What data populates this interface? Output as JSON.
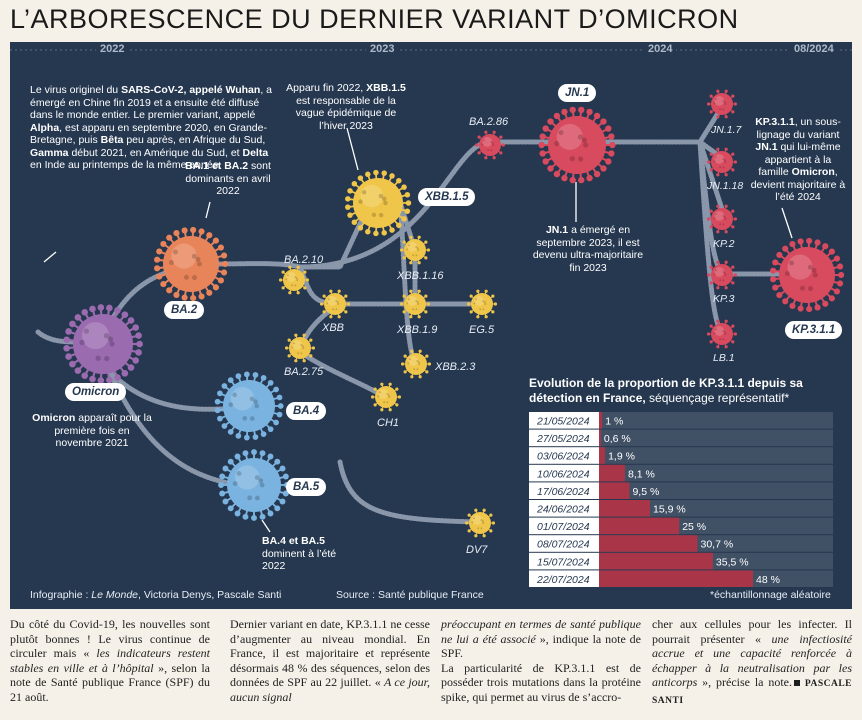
{
  "title": "L’ARBORESCENCE DU DERNIER VARIANT D’OMICRON",
  "years": [
    "2022",
    "2023",
    "2024",
    "08/2024"
  ],
  "texts": {
    "intro_1": "Le virus originel du ",
    "intro_2": "SARS-CoV-2, appelé Wuhan",
    "intro_3": ", a émergé en Chine fin 2019 et a ensuite été diffusé dans le monde entier. Le premier variant, appelé ",
    "intro_4": "Alpha",
    "intro_5": ", est apparu en septembre 2020, en Grande-Bretagne, puis ",
    "intro_6": "Bêta",
    "intro_7": " peu après, en Afrique du Sud, ",
    "intro_8": "Gamma",
    "intro_9": " début 2021, en Amérique du Sud, et ",
    "intro_10": "Delta",
    "intro_11": " en Inde au printemps de la même année.",
    "ba1_1": "BA.1 et BA.2",
    "ba1_2": " sont dominants en avril 2022",
    "xbb_1": "Apparu fin 2022, ",
    "xbb_2": "XBB.1.5",
    "xbb_3": " est responsable de la vague épidémique de l’hiver 2023",
    "jn1_1": "JN.1",
    "jn1_2": " a émergé en septembre 2023, il est devenu ultra-majoritaire fin 2023",
    "kp_1": "KP.3.1.1",
    "kp_2": ", un sous-lignage du variant ",
    "kp_3": "JN.1",
    "kp_4": " qui lui-même appartient à la famille ",
    "kp_5": "Omicron",
    "kp_6": ", devient majoritaire à l’été 2024",
    "om_1": "Omicron",
    "om_2": " apparaît pour la première fois en novembre 2021",
    "ba45_1": "BA.4 et BA.5",
    "ba45_2": " dominent à l’été 2022"
  },
  "labels": {
    "omicron": "Omicron",
    "ba2": "BA.2",
    "ba4": "BA.4",
    "ba5": "BA.5",
    "xbb15": "XBB.1.5",
    "jn1": "JN.1",
    "kp311": "KP.3.1.1",
    "ba210": "BA.2.10",
    "xbb": "XBB",
    "ba275": "BA.2.75",
    "ch1": "CH1",
    "xbb116": "XBB.1.16",
    "xbb19": "XBB.1.9",
    "eg5": "EG.5",
    "xbb23": "XBB.2.3",
    "dv7": "DV7",
    "ba286": "BA.2.86",
    "jn17": "JN.1.7",
    "jn118": "JN.1.18",
    "kp2": "KP.2",
    "kp3": "KP.3",
    "lb1": "LB.1"
  },
  "colors": {
    "panel": "#263850",
    "omicron": "#9b6bb0",
    "ba2": "#e8845a",
    "ba45": "#7ab3e0",
    "xbb": "#f0c64a",
    "jn": "#d84a5e",
    "bar": "#a93548"
  },
  "chart_data": {
    "type": "bar",
    "title": "Evolution de la proportion de KP.3.1.1 depuis sa détection en France,",
    "subtitle": "séquençage représentatif*",
    "categories": [
      "21/05/2024",
      "27/05/2024",
      "03/06/2024",
      "10/06/2024",
      "17/06/2024",
      "24/06/2024",
      "01/07/2024",
      "08/07/2024",
      "15/07/2024",
      "22/07/2024"
    ],
    "values": [
      1,
      0.6,
      1.9,
      8.1,
      9.5,
      15.9,
      25,
      30.7,
      35.5,
      48
    ],
    "value_labels": [
      "1 %",
      "0,6 %",
      "1,9 %",
      "8,1 %",
      "9,5 %",
      "15,9 %",
      "25 %",
      "30,7 %",
      "35,5 %",
      "48 %"
    ],
    "xlim": [
      0,
      48
    ],
    "footnote": "*échantillonnage aléatoire"
  },
  "credits": {
    "infographie": "Infographie : ",
    "lemonde": "Le Monde",
    "authors": ", Victoria Denys, Pascale Santi",
    "source": "Source : Santé publique France"
  },
  "article": {
    "c1a": "Du côté du Covid-19, les nouvelles sont plutôt bonnes ! Le virus continue de circuler mais « ",
    "c1b": "les indicateurs restent stables en ville et à l’hôpital",
    "c1c": " », selon la note de Santé publique France (SPF) du 21 août.",
    "c2a": "Dernier variant en date, KP.3.1.1 ne cesse d’augmenter au niveau mondial. En France, il est majoritaire et représente désormais 48 % des séquences, selon des données de SPF au 22 juillet. « ",
    "c2b": "A ce jour, aucun signal",
    "c3a": "préoccupant en termes de santé publique ne lui a été associé",
    "c3b": " », indique la note de SPF.",
    "c3c": "La particularité de KP.3.1.1 est de posséder trois mutations dans la protéine spike, qui permet au virus de s’accro-",
    "c4a": "cher aux cellules pour les infecter. Il pourrait présenter « ",
    "c4b": "une infectiosité accrue et une capacité renforcée à échapper à la neutralisation par les anticorps",
    "c4c": " », précise la note.",
    "signature": "PASCALE SANTI"
  }
}
